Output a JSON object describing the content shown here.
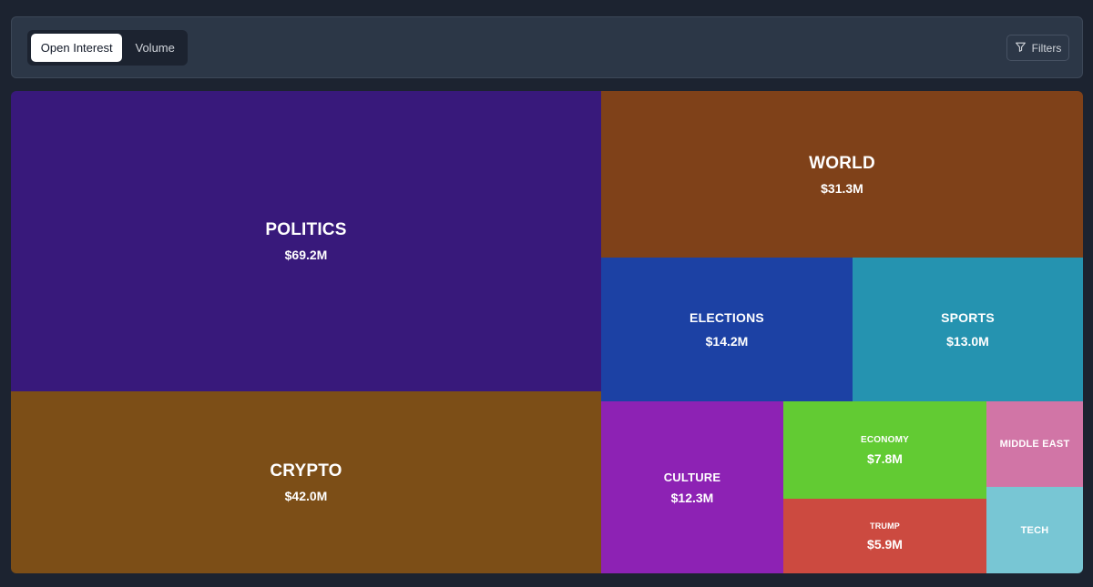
{
  "toolbar": {
    "tabs": [
      {
        "label": "Open Interest",
        "active": true
      },
      {
        "label": "Volume",
        "active": false
      }
    ],
    "filters_label": "Filters",
    "filters_icon": "filter-icon"
  },
  "chart_data": {
    "type": "treemap",
    "metric": "Open Interest",
    "unit": "USD",
    "items": [
      {
        "name": "POLITICS",
        "value": 69.2,
        "label": "$69.2M",
        "color": "#38197b"
      },
      {
        "name": "CRYPTO",
        "value": 42.0,
        "label": "$42.0M",
        "color": "#7c4e17"
      },
      {
        "name": "WORLD",
        "value": 31.3,
        "label": "$31.3M",
        "color": "#7f4119"
      },
      {
        "name": "ELECTIONS",
        "value": 14.2,
        "label": "$14.2M",
        "color": "#1c41a4"
      },
      {
        "name": "SPORTS",
        "value": 13.0,
        "label": "$13.0M",
        "color": "#2593b0"
      },
      {
        "name": "CULTURE",
        "value": 12.3,
        "label": "$12.3M",
        "color": "#8d22b4"
      },
      {
        "name": "ECONOMY",
        "value": 7.8,
        "label": "$7.8M",
        "color": "#62cb33"
      },
      {
        "name": "TRUMP",
        "value": 5.9,
        "label": "$5.9M",
        "color": "#cc4a40"
      },
      {
        "name": "MIDDLE EAST",
        "value": null,
        "label": "",
        "color": "#d175a6"
      },
      {
        "name": "TECH",
        "value": null,
        "label": "",
        "color": "#78c6d4"
      }
    ]
  }
}
